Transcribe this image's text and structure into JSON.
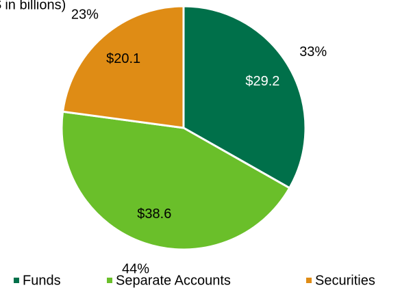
{
  "chart_data": {
    "type": "pie",
    "title": "($ in billions)",
    "categories": [
      "Funds",
      "Separate Accounts",
      "Securities"
    ],
    "values": [
      29.2,
      38.6,
      20.1
    ],
    "value_labels": [
      "$29.2",
      "$38.6",
      "$20.1"
    ],
    "percentages": [
      {
        "value": 33,
        "label": "33%"
      },
      {
        "value": 44,
        "label": "44%"
      },
      {
        "value": 23,
        "label": "23%"
      }
    ],
    "colors": [
      "#00704a",
      "#6abf2a",
      "#df8c15"
    ],
    "legend": "bottom"
  }
}
